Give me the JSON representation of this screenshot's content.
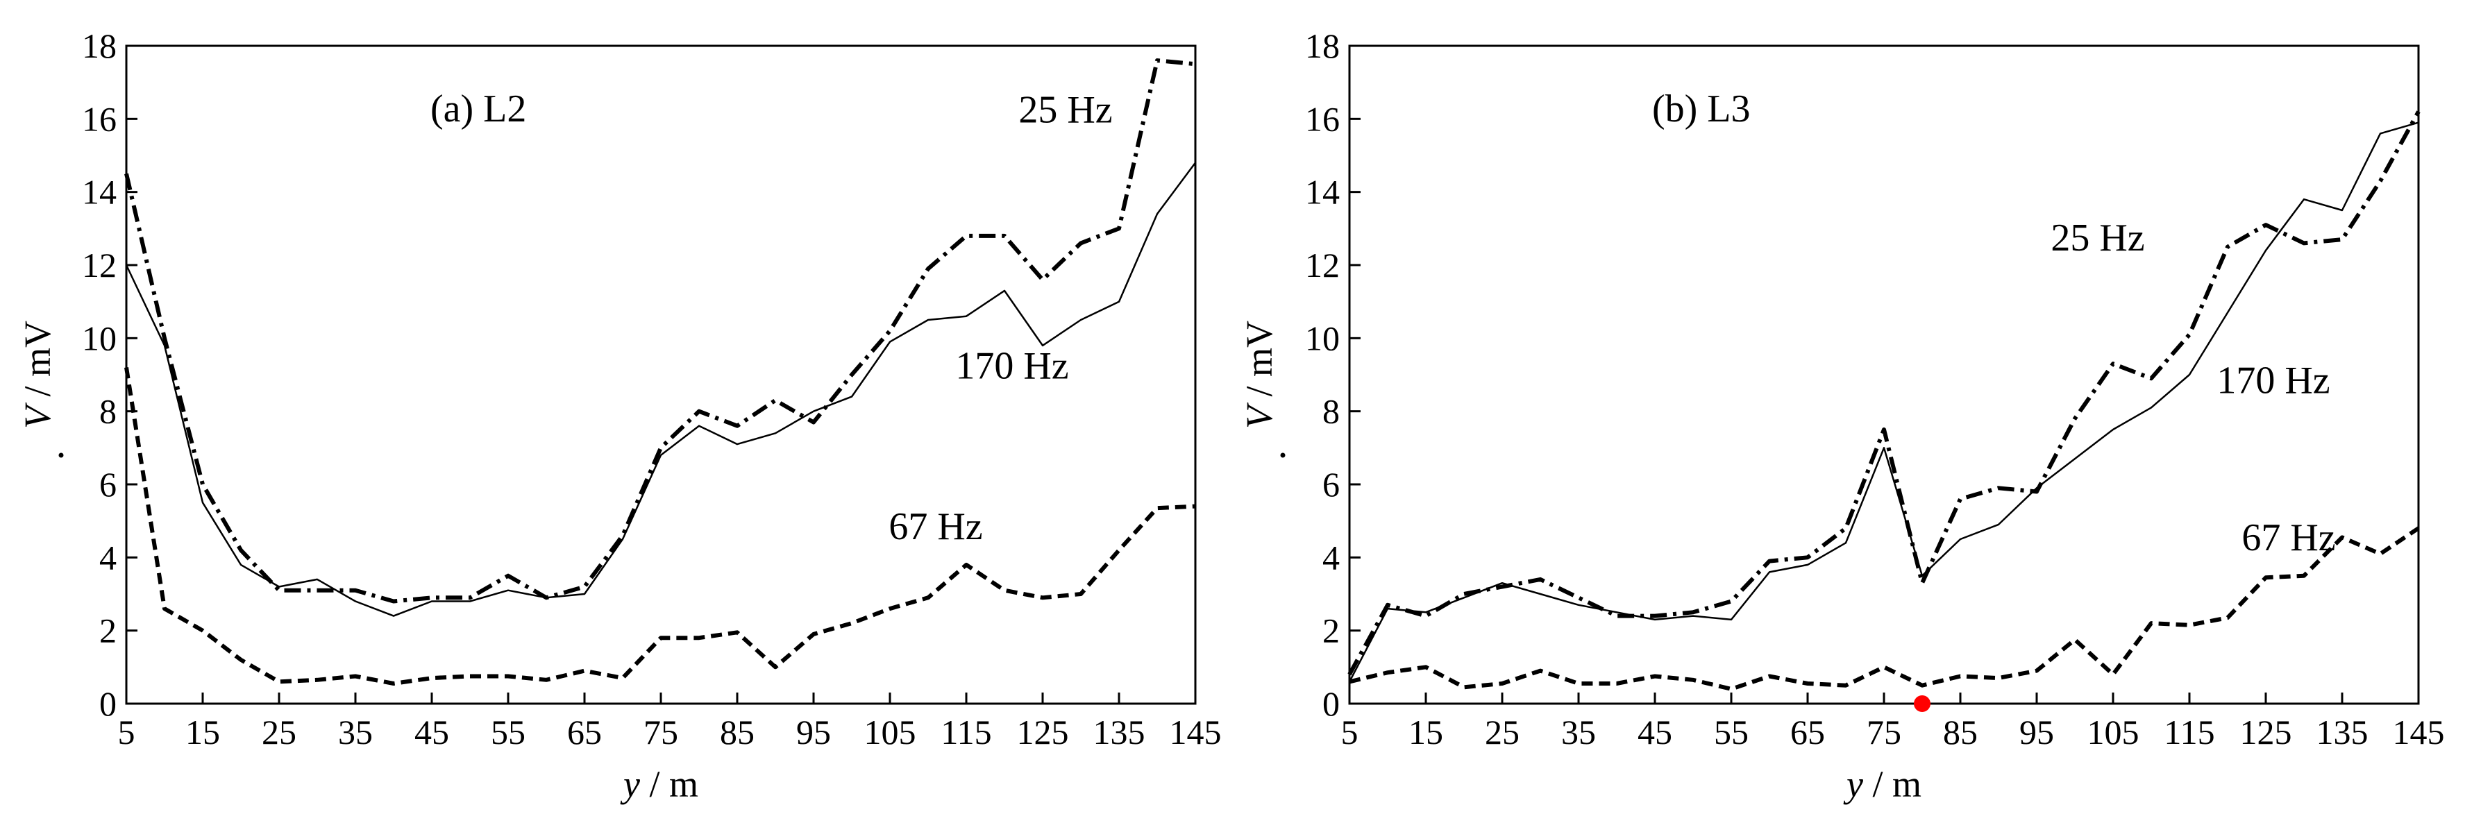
{
  "chart_data": [
    {
      "type": "line",
      "title": "(a) L2",
      "xlabel_var": "y",
      "xlabel_unit": " / m",
      "ylabel_var": "V",
      "ylabel_unit": " / mV",
      "xlim": [
        5,
        145
      ],
      "ylim": [
        0,
        18
      ],
      "xticks": [
        5,
        15,
        25,
        35,
        45,
        55,
        65,
        75,
        85,
        95,
        105,
        115,
        125,
        135,
        145
      ],
      "yticks": [
        0,
        2,
        4,
        6,
        8,
        10,
        12,
        14,
        16,
        18
      ],
      "grid": false,
      "x": [
        5,
        10,
        15,
        20,
        25,
        30,
        35,
        40,
        45,
        50,
        55,
        60,
        65,
        70,
        75,
        80,
        85,
        90,
        95,
        100,
        105,
        110,
        115,
        120,
        125,
        130,
        135,
        140,
        145
      ],
      "series": [
        {
          "name": "25 Hz",
          "style": "dashdot",
          "values": [
            14.5,
            10.0,
            6.0,
            4.2,
            3.1,
            3.1,
            3.1,
            2.8,
            2.9,
            2.9,
            3.5,
            2.9,
            3.2,
            4.6,
            7.0,
            8.0,
            7.6,
            8.3,
            7.7,
            9.0,
            10.2,
            11.9,
            12.8,
            12.8,
            11.6,
            12.6,
            13.0,
            17.6,
            17.5
          ]
        },
        {
          "name": "170 Hz",
          "style": "solid",
          "values": [
            12.0,
            9.8,
            5.5,
            3.8,
            3.2,
            3.4,
            2.8,
            2.4,
            2.8,
            2.8,
            3.1,
            2.9,
            3.0,
            4.5,
            6.8,
            7.6,
            7.1,
            7.4,
            8.0,
            8.4,
            9.9,
            10.5,
            10.6,
            11.3,
            9.8,
            10.5,
            11.0,
            13.4,
            14.8
          ]
        },
        {
          "name": "67 Hz",
          "style": "dashed",
          "values": [
            9.2,
            2.6,
            2.0,
            1.2,
            0.6,
            0.65,
            0.75,
            0.55,
            0.7,
            0.75,
            0.75,
            0.65,
            0.9,
            0.7,
            1.8,
            1.8,
            1.95,
            1.0,
            1.9,
            2.2,
            2.6,
            2.9,
            3.8,
            3.1,
            2.9,
            3.0,
            4.2,
            5.35,
            5.4
          ]
        }
      ],
      "series_label_anchor_data": [
        {
          "x": 128,
          "y": 15.9
        },
        {
          "x": 121,
          "y": 8.9
        },
        {
          "x": 111,
          "y": 4.5
        }
      ]
    },
    {
      "type": "line",
      "title": "(b) L3",
      "xlabel_var": "y",
      "xlabel_unit": " / m",
      "ylabel_var": "V",
      "ylabel_unit": " / mV",
      "xlim": [
        5,
        145
      ],
      "ylim": [
        0,
        18
      ],
      "xticks": [
        5,
        15,
        25,
        35,
        45,
        55,
        65,
        75,
        85,
        95,
        105,
        115,
        125,
        135,
        145
      ],
      "yticks": [
        0,
        2,
        4,
        6,
        8,
        10,
        12,
        14,
        16,
        18
      ],
      "grid": false,
      "x": [
        5,
        10,
        15,
        20,
        25,
        30,
        35,
        40,
        45,
        50,
        55,
        60,
        65,
        70,
        75,
        80,
        85,
        90,
        95,
        100,
        105,
        110,
        115,
        120,
        125,
        130,
        135,
        140,
        145
      ],
      "series": [
        {
          "name": "25 Hz",
          "style": "dashdot",
          "values": [
            0.8,
            2.7,
            2.4,
            3.0,
            3.2,
            3.4,
            2.9,
            2.4,
            2.4,
            2.5,
            2.8,
            3.9,
            4.0,
            4.8,
            7.5,
            3.3,
            5.6,
            5.9,
            5.8,
            7.8,
            9.3,
            8.9,
            10.1,
            12.5,
            13.1,
            12.6,
            12.7,
            14.3,
            16.2
          ]
        },
        {
          "name": "170 Hz",
          "style": "solid",
          "values": [
            0.6,
            2.6,
            2.5,
            2.9,
            3.3,
            3.0,
            2.7,
            2.5,
            2.3,
            2.4,
            2.3,
            3.6,
            3.8,
            4.4,
            7.0,
            3.5,
            4.5,
            4.9,
            5.9,
            6.7,
            7.5,
            8.1,
            9.0,
            10.7,
            12.4,
            13.8,
            13.5,
            15.6,
            15.9
          ]
        },
        {
          "name": "67 Hz",
          "style": "dashed",
          "values": [
            0.6,
            0.85,
            1.0,
            0.45,
            0.55,
            0.9,
            0.55,
            0.55,
            0.75,
            0.65,
            0.4,
            0.75,
            0.55,
            0.5,
            1.0,
            0.5,
            0.75,
            0.7,
            0.9,
            1.75,
            0.8,
            2.2,
            2.15,
            2.35,
            3.45,
            3.5,
            4.55,
            4.1,
            4.8
          ]
        }
      ],
      "series_label_anchor_data": [
        {
          "x": 103,
          "y": 12.4
        },
        {
          "x": 126,
          "y": 8.5
        },
        {
          "x": 128,
          "y": 4.2
        }
      ],
      "marker": {
        "x": 80,
        "y": 0.0,
        "color": "#ff0000"
      }
    }
  ]
}
